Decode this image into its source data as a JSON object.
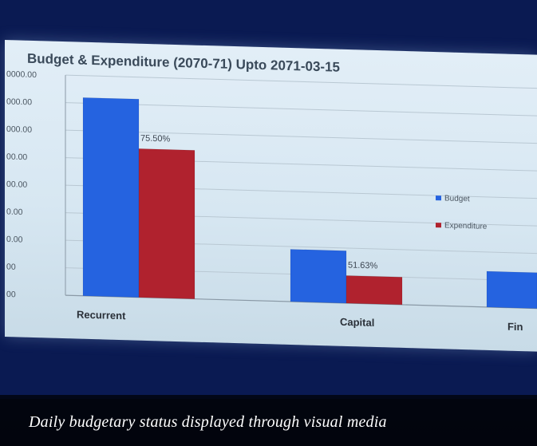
{
  "caption": "Daily budgetary status displayed through visual media",
  "chart_data": {
    "type": "bar",
    "title": "Budget & Expenditure (2070-71) Upto 2071-03-15",
    "categories": [
      "Recurrent",
      "Capital",
      "Fin"
    ],
    "y_tick_labels": [
      "0000.00",
      "000.00",
      "000.00",
      "00.00",
      "00.00",
      "0.00",
      "0.00",
      "00",
      "00"
    ],
    "ylim": [
      0,
      8
    ],
    "series": [
      {
        "name": "Budget",
        "color": "#2563e0",
        "values": [
          7.2,
          1.9,
          1.3
        ]
      },
      {
        "name": "Expenditure",
        "color": "#b0222e",
        "values": [
          5.4,
          1.0,
          null
        ]
      }
    ],
    "data_labels": [
      {
        "category": "Recurrent",
        "text": "75.50%"
      },
      {
        "category": "Capital",
        "text": "51.63%"
      }
    ],
    "legend_position": "right",
    "grid": true
  }
}
